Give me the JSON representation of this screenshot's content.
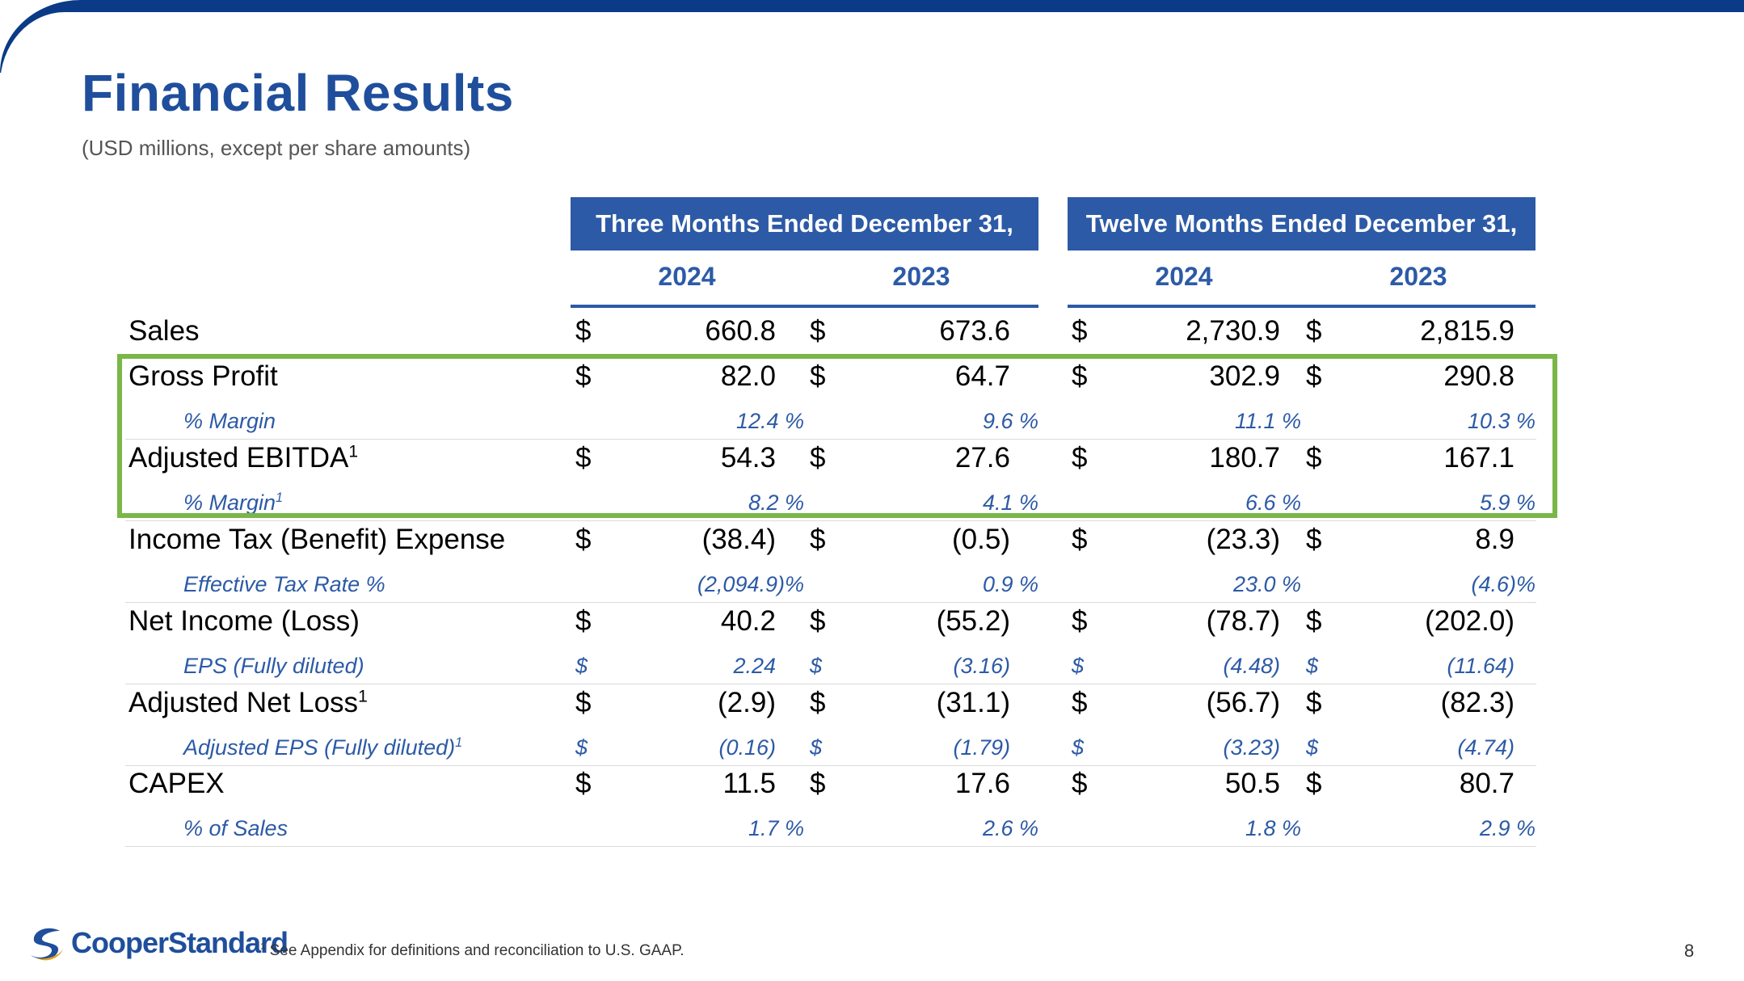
{
  "title": "Financial Results",
  "subtitle": "(USD millions, except per share amounts)",
  "period_headers": [
    "Three Months Ended December 31,",
    "Twelve Months Ended December 31,"
  ],
  "years": [
    "2024",
    "2023",
    "2024",
    "2023"
  ],
  "rows": [
    {
      "label": "Sales",
      "sup": "",
      "cur": [
        "$",
        "$",
        "$",
        "$"
      ],
      "values": [
        "660.8",
        "673.6",
        "2,730.9",
        "2,815.9"
      ]
    },
    {
      "label": "Gross Profit",
      "sup": "",
      "cur": [
        "$",
        "$",
        "$",
        "$"
      ],
      "values": [
        "82.0",
        "64.7",
        "302.9",
        "290.8"
      ],
      "sub": {
        "label": "% Margin",
        "sup": "",
        "cur": [
          "",
          "",
          "",
          ""
        ],
        "values": [
          "12.4 %",
          "9.6 %",
          "11.1 %",
          "10.3 %"
        ]
      }
    },
    {
      "label": "Adjusted EBITDA",
      "sup": "1",
      "cur": [
        "$",
        "$",
        "$",
        "$"
      ],
      "values": [
        "54.3",
        "27.6",
        "180.7",
        "167.1"
      ],
      "sub": {
        "label": "% Margin",
        "sup": "1",
        "cur": [
          "",
          "",
          "",
          ""
        ],
        "values": [
          "8.2 %",
          "4.1 %",
          "6.6 %",
          "5.9 %"
        ]
      }
    },
    {
      "label": "Income Tax (Benefit) Expense",
      "sup": "",
      "cur": [
        "$",
        "$",
        "$",
        "$"
      ],
      "values": [
        "(38.4)",
        "(0.5)",
        "(23.3)",
        "8.9"
      ],
      "sub": {
        "label": "Effective Tax Rate %",
        "sup": "",
        "cur": [
          "",
          "",
          "",
          ""
        ],
        "values": [
          "(2,094.9)%",
          "0.9 %",
          "23.0 %",
          "(4.6)%"
        ]
      }
    },
    {
      "label": "Net Income (Loss)",
      "sup": "",
      "cur": [
        "$",
        "$",
        "$",
        "$"
      ],
      "values": [
        "40.2",
        "(55.2)",
        "(78.7)",
        "(202.0)"
      ],
      "sub": {
        "label": "EPS (Fully diluted)",
        "sup": "",
        "cur": [
          "$",
          "$",
          "$",
          "$"
        ],
        "values": [
          "2.24",
          "(3.16)",
          "(4.48)",
          "(11.64)"
        ]
      }
    },
    {
      "label": "Adjusted Net Loss",
      "sup": "1",
      "cur": [
        "$",
        "$",
        "$",
        "$"
      ],
      "values": [
        "(2.9)",
        "(31.1)",
        "(56.7)",
        "(82.3)"
      ],
      "sub": {
        "label": "Adjusted EPS (Fully diluted)",
        "sup": "1",
        "cur": [
          "$",
          "$",
          "$",
          "$"
        ],
        "values": [
          "(0.16)",
          "(1.79)",
          "(3.23)",
          "(4.74)"
        ]
      }
    },
    {
      "label": "CAPEX",
      "sup": "",
      "cur": [
        "$",
        "$",
        "$",
        "$"
      ],
      "values": [
        "11.5",
        "17.6",
        "50.5",
        "80.7"
      ],
      "sub": {
        "label": "% of Sales",
        "sup": "",
        "cur": [
          "",
          "",
          "",
          ""
        ],
        "values": [
          "1.7 %",
          "2.6 %",
          "1.8 %",
          "2.9 %"
        ]
      }
    }
  ],
  "logo_text": "CooperStandard",
  "footnote_marker": "1",
  "footnote": "See Appendix for definitions and reconciliation to U.S. GAAP.",
  "page_number": "8",
  "colors": {
    "brand_blue": "#2c5aa6",
    "title_blue": "#1f4e9c",
    "highlight_green": "#7ab648"
  }
}
